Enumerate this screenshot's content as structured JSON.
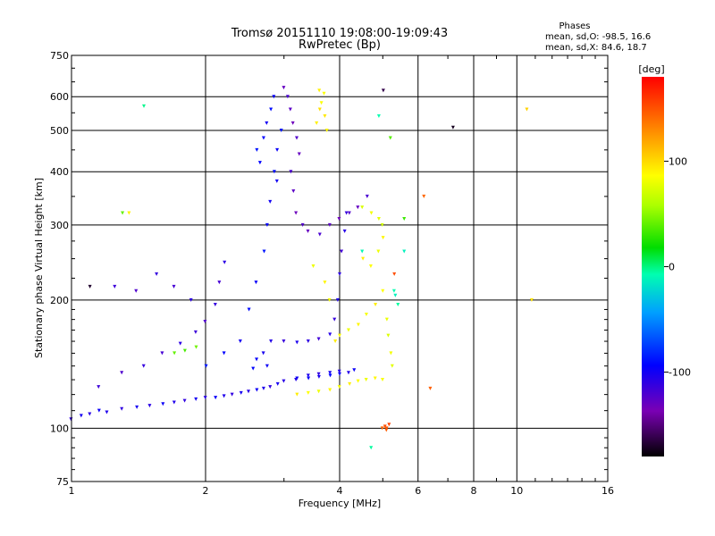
{
  "chart_data": {
    "type": "scatter",
    "title": "Tromsø 20151110 19:08:00-19:09:43",
    "subtitle": "RwPretec (Bp)",
    "xlabel": "Frequency [MHz]",
    "ylabel": "Stationary phase Virtual Height [km]",
    "x_scale": "log",
    "y_scale": "log",
    "xlim": [
      1,
      16
    ],
    "ylim": [
      75,
      750
    ],
    "x_ticks": [
      "1",
      "2",
      "4",
      "6",
      "8",
      "10",
      "16"
    ],
    "y_ticks": [
      "75",
      "100",
      "200",
      "300",
      "400",
      "500",
      "600",
      "750"
    ],
    "grid": true,
    "legend": {
      "title": "Phases",
      "lines": [
        "mean, sd,O: -98.5, 16.6",
        "mean, sd,X:  84.6, 18.7"
      ]
    },
    "colorbar": {
      "label": "[deg]",
      "ticks": [
        "100",
        "0",
        "-100"
      ],
      "tick_values": [
        100,
        0,
        -100
      ],
      "range": [
        -180,
        180
      ]
    },
    "series": [
      {
        "phase": -110,
        "points": [
          [
            1.0,
            105
          ],
          [
            1.05,
            107
          ],
          [
            1.1,
            108
          ],
          [
            1.15,
            110
          ],
          [
            1.2,
            109
          ],
          [
            1.3,
            111
          ],
          [
            1.4,
            112
          ],
          [
            1.5,
            113
          ],
          [
            1.6,
            114
          ],
          [
            1.7,
            115
          ],
          [
            1.8,
            116
          ],
          [
            1.9,
            117
          ],
          [
            2.0,
            118
          ],
          [
            2.1,
            118
          ],
          [
            2.2,
            119
          ],
          [
            2.3,
            120
          ],
          [
            2.4,
            121
          ],
          [
            2.5,
            122
          ],
          [
            2.6,
            123
          ],
          [
            2.7,
            124
          ],
          [
            2.8,
            125
          ],
          [
            2.9,
            127
          ],
          [
            3.0,
            129
          ],
          [
            3.2,
            131
          ],
          [
            3.4,
            133
          ],
          [
            3.6,
            134
          ],
          [
            3.8,
            135
          ],
          [
            4.0,
            136
          ],
          [
            4.3,
            137
          ]
        ]
      },
      {
        "phase": -120,
        "points": [
          [
            1.15,
            125
          ],
          [
            1.3,
            135
          ],
          [
            1.45,
            140
          ],
          [
            1.6,
            150
          ],
          [
            1.75,
            158
          ],
          [
            1.9,
            168
          ],
          [
            2.0,
            178
          ],
          [
            2.1,
            195
          ],
          [
            2.15,
            220
          ],
          [
            2.2,
            245
          ],
          [
            1.25,
            215
          ],
          [
            1.4,
            210
          ],
          [
            1.55,
            230
          ],
          [
            1.7,
            215
          ],
          [
            1.85,
            200
          ]
        ]
      },
      {
        "phase": -100,
        "points": [
          [
            2.0,
            140
          ],
          [
            2.2,
            150
          ],
          [
            2.4,
            160
          ],
          [
            2.5,
            190
          ],
          [
            2.6,
            220
          ],
          [
            2.7,
            260
          ],
          [
            2.75,
            300
          ],
          [
            2.8,
            340
          ],
          [
            2.85,
            400
          ],
          [
            2.9,
            450
          ],
          [
            2.95,
            500
          ],
          [
            2.7,
            480
          ],
          [
            2.75,
            520
          ],
          [
            2.8,
            560
          ],
          [
            2.85,
            600
          ],
          [
            2.6,
            450
          ],
          [
            2.65,
            420
          ],
          [
            2.9,
            380
          ]
        ]
      },
      {
        "phase": -130,
        "points": [
          [
            3.0,
            630
          ],
          [
            3.05,
            600
          ],
          [
            3.1,
            560
          ],
          [
            3.15,
            520
          ],
          [
            3.2,
            480
          ],
          [
            3.25,
            440
          ],
          [
            3.1,
            400
          ],
          [
            3.15,
            360
          ],
          [
            3.2,
            320
          ],
          [
            3.3,
            300
          ],
          [
            3.4,
            290
          ],
          [
            3.6,
            285
          ],
          [
            3.8,
            300
          ],
          [
            4.0,
            310
          ],
          [
            4.2,
            320
          ],
          [
            4.4,
            330
          ],
          [
            4.6,
            350
          ]
        ]
      },
      {
        "phase": -115,
        "points": [
          [
            2.8,
            160
          ],
          [
            3.0,
            160
          ],
          [
            3.2,
            159
          ],
          [
            3.4,
            160
          ],
          [
            3.6,
            162
          ],
          [
            3.8,
            166
          ],
          [
            3.9,
            180
          ],
          [
            3.95,
            200
          ],
          [
            4.0,
            230
          ],
          [
            4.05,
            260
          ],
          [
            4.1,
            290
          ],
          [
            4.15,
            320
          ]
        ]
      },
      {
        "phase": -105,
        "points": [
          [
            3.2,
            130
          ],
          [
            3.4,
            131
          ],
          [
            3.6,
            132
          ],
          [
            3.8,
            133
          ],
          [
            4.0,
            134
          ],
          [
            4.2,
            135
          ],
          [
            2.6,
            145
          ],
          [
            2.7,
            150
          ],
          [
            2.55,
            138
          ],
          [
            2.75,
            140
          ]
        ]
      },
      {
        "phase": 95,
        "points": [
          [
            3.6,
            620
          ],
          [
            3.65,
            580
          ],
          [
            3.7,
            540
          ],
          [
            3.75,
            500
          ],
          [
            3.6,
            560
          ],
          [
            3.55,
            520
          ],
          [
            3.7,
            610
          ]
        ]
      },
      {
        "phase": 90,
        "points": [
          [
            3.2,
            120
          ],
          [
            3.4,
            121
          ],
          [
            3.6,
            122
          ],
          [
            3.8,
            123
          ],
          [
            4.0,
            125
          ],
          [
            4.2,
            127
          ],
          [
            4.4,
            129
          ],
          [
            4.6,
            130
          ],
          [
            4.8,
            131
          ],
          [
            5.0,
            130
          ],
          [
            3.9,
            160
          ],
          [
            4.0,
            165
          ],
          [
            4.2,
            170
          ],
          [
            4.4,
            175
          ],
          [
            4.6,
            185
          ],
          [
            4.8,
            195
          ],
          [
            5.0,
            210
          ],
          [
            3.5,
            240
          ],
          [
            3.7,
            220
          ],
          [
            3.8,
            200
          ],
          [
            4.5,
            250
          ],
          [
            4.7,
            240
          ],
          [
            4.9,
            260
          ],
          [
            5.0,
            280
          ]
        ]
      },
      {
        "phase": 80,
        "points": [
          [
            4.5,
            330
          ],
          [
            4.7,
            320
          ],
          [
            4.9,
            310
          ],
          [
            5.0,
            300
          ],
          [
            5.1,
            180
          ],
          [
            5.15,
            165
          ],
          [
            5.2,
            150
          ],
          [
            5.25,
            140
          ]
        ]
      },
      {
        "phase": 40,
        "points": [
          [
            1.7,
            150
          ],
          [
            1.8,
            152
          ],
          [
            1.9,
            155
          ],
          [
            5.2,
            480
          ],
          [
            5.6,
            310
          ],
          [
            1.3,
            320
          ]
        ]
      },
      {
        "phase": 150,
        "points": [
          [
            5.0,
            100
          ],
          [
            5.05,
            101
          ],
          [
            5.1,
            99
          ],
          [
            5.15,
            102
          ],
          [
            5.1,
            100
          ],
          [
            6.2,
            350
          ],
          [
            5.3,
            230
          ],
          [
            6.4,
            124
          ]
        ]
      },
      {
        "phase": -10,
        "points": [
          [
            5.3,
            210
          ],
          [
            5.35,
            205
          ],
          [
            5.4,
            195
          ],
          [
            4.5,
            260
          ],
          [
            1.45,
            570
          ],
          [
            4.9,
            540
          ],
          [
            5.6,
            260
          ],
          [
            4.7,
            90
          ]
        ]
      },
      {
        "phase": 100,
        "points": [
          [
            10.5,
            560
          ],
          [
            10.8,
            200
          ],
          [
            1.35,
            320
          ]
        ]
      },
      {
        "phase": -170,
        "points": [
          [
            7.2,
            508
          ],
          [
            5.0,
            620
          ],
          [
            1.1,
            215
          ]
        ]
      }
    ]
  }
}
